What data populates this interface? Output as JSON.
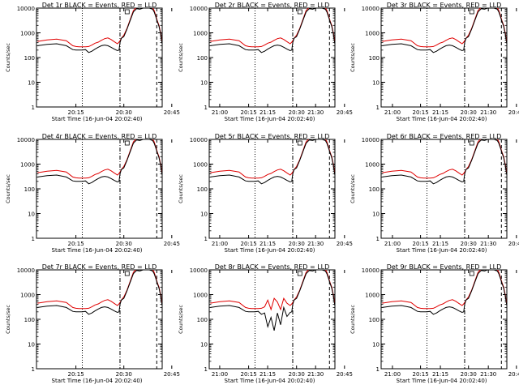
{
  "colors": {
    "events": "#000000",
    "lld": "#e00000",
    "axis": "#000000",
    "background": "#ffffff"
  },
  "chart_data": {
    "type": "line",
    "layout": "3x3",
    "title_suffix": "BLACK = Events, RED = LLD",
    "ylabel": "Counts/sec",
    "xlabel": "Start Time (16-Jun-04 20:02:40)",
    "yscale": "log",
    "ylim": [
      1,
      10000
    ],
    "y_tick_values": [
      1,
      10,
      100,
      1000,
      10000
    ],
    "y_tick_labels": [
      "1",
      "10",
      "100",
      "1000",
      "10000"
    ],
    "x_unit": "minutes since 20:00 (16-Jun-04)",
    "xlim": [
      2.67,
      42.0
    ],
    "x_tick_values": [
      15,
      30,
      45,
      60,
      75,
      90
    ],
    "x_tick_labels": [
      "20:15",
      "20:30",
      "20:45",
      "21:00",
      "21:15",
      "21:30"
    ],
    "markers": [
      {
        "type": "dotted",
        "x": 17.0
      },
      {
        "type": "dash-dot",
        "x": 28.8
      },
      {
        "type": "dashed",
        "x": 40.3
      }
    ],
    "x": [
      3,
      6,
      9,
      12,
      14,
      15,
      16,
      17,
      18,
      19,
      20,
      21,
      22,
      23,
      24,
      25,
      26,
      27,
      28,
      28.5,
      28.8,
      29.2,
      30,
      31,
      32,
      33,
      34,
      35,
      36,
      37,
      38,
      39,
      39.5,
      40,
      40.5,
      41,
      41.5,
      42
    ],
    "detectors": [
      {
        "name": "Det 1r",
        "lld": [
          450,
          520,
          560,
          480,
          300,
          280,
          270,
          270,
          270,
          280,
          320,
          380,
          420,
          500,
          580,
          620,
          540,
          440,
          360,
          420,
          480,
          600,
          800,
          1500,
          3500,
          8000,
          11000,
          10500,
          12000,
          13000,
          12000,
          10500,
          8000,
          5000,
          3000,
          2000,
          1000,
          400
        ],
        "events": [
          300,
          340,
          360,
          300,
          210,
          200,
          200,
          200,
          210,
          160,
          180,
          220,
          260,
          300,
          320,
          300,
          260,
          220,
          190,
          200,
          400,
          600,
          700,
          1400,
          3200,
          7000,
          9500,
          9000,
          10000,
          11000,
          10000,
          9000,
          7000,
          4500,
          2800,
          1800,
          900,
          350
        ]
      },
      {
        "name": "Det 2r",
        "lld": [
          450,
          520,
          560,
          480,
          300,
          280,
          270,
          270,
          270,
          280,
          320,
          380,
          420,
          500,
          580,
          620,
          540,
          440,
          360,
          420,
          480,
          600,
          800,
          1500,
          3500,
          8000,
          11000,
          10500,
          12000,
          13000,
          12000,
          10500,
          8000,
          5000,
          3000,
          2000,
          1000,
          400
        ],
        "events": [
          300,
          340,
          360,
          300,
          210,
          200,
          200,
          200,
          210,
          160,
          180,
          220,
          260,
          300,
          320,
          300,
          260,
          220,
          190,
          200,
          400,
          600,
          700,
          1400,
          3200,
          7000,
          9500,
          9000,
          10000,
          11000,
          10000,
          9000,
          7000,
          4500,
          2800,
          1800,
          900,
          350
        ]
      },
      {
        "name": "Det 3r",
        "lld": [
          450,
          520,
          560,
          480,
          300,
          280,
          270,
          270,
          270,
          280,
          320,
          380,
          420,
          500,
          580,
          620,
          540,
          440,
          360,
          420,
          480,
          600,
          800,
          1500,
          3500,
          8000,
          11000,
          10500,
          12000,
          13000,
          12000,
          10500,
          8000,
          5000,
          3000,
          2000,
          1000,
          400
        ],
        "events": [
          300,
          340,
          360,
          300,
          210,
          200,
          200,
          200,
          210,
          160,
          180,
          220,
          260,
          300,
          320,
          300,
          260,
          220,
          190,
          200,
          400,
          600,
          700,
          1400,
          3200,
          7000,
          9500,
          9000,
          10000,
          11000,
          10000,
          9000,
          7000,
          4500,
          2800,
          1800,
          900,
          350
        ]
      },
      {
        "name": "Det 4r",
        "lld": [
          450,
          520,
          560,
          480,
          300,
          280,
          270,
          270,
          270,
          280,
          320,
          380,
          420,
          500,
          580,
          620,
          540,
          440,
          360,
          420,
          480,
          600,
          800,
          1500,
          3500,
          8000,
          11000,
          10500,
          12000,
          13000,
          12000,
          10500,
          8000,
          5000,
          3000,
          2000,
          1000,
          400
        ],
        "events": [
          300,
          340,
          360,
          300,
          210,
          200,
          200,
          200,
          210,
          160,
          180,
          220,
          260,
          300,
          320,
          300,
          260,
          220,
          190,
          200,
          400,
          600,
          700,
          1400,
          3200,
          7000,
          9500,
          9000,
          10000,
          11000,
          10000,
          9000,
          7000,
          4500,
          2800,
          1800,
          900,
          350
        ]
      },
      {
        "name": "Det 5r",
        "lld": [
          450,
          520,
          560,
          480,
          300,
          280,
          270,
          270,
          270,
          280,
          320,
          380,
          420,
          500,
          580,
          620,
          540,
          440,
          360,
          420,
          480,
          600,
          800,
          1500,
          3500,
          8000,
          11000,
          10500,
          12000,
          13000,
          12000,
          10500,
          8000,
          5000,
          3000,
          2000,
          1000,
          400
        ],
        "events": [
          300,
          340,
          360,
          300,
          210,
          200,
          200,
          200,
          210,
          160,
          180,
          220,
          260,
          300,
          320,
          300,
          260,
          220,
          190,
          200,
          400,
          600,
          700,
          1400,
          3200,
          7000,
          9500,
          9000,
          10000,
          11000,
          10000,
          9000,
          7000,
          4500,
          2800,
          1800,
          900,
          350
        ]
      },
      {
        "name": "Det 6r",
        "lld": [
          450,
          520,
          560,
          480,
          300,
          280,
          270,
          270,
          270,
          280,
          320,
          380,
          420,
          500,
          580,
          620,
          540,
          440,
          360,
          420,
          480,
          600,
          800,
          1500,
          3500,
          8000,
          11000,
          10500,
          12000,
          13000,
          12000,
          10500,
          8000,
          5000,
          3000,
          2000,
          1000,
          400
        ],
        "events": [
          300,
          340,
          360,
          300,
          210,
          200,
          200,
          200,
          210,
          160,
          180,
          220,
          260,
          300,
          320,
          300,
          260,
          220,
          190,
          200,
          400,
          600,
          700,
          1400,
          3200,
          7000,
          9500,
          9000,
          10000,
          11000,
          10000,
          9000,
          7000,
          4500,
          2800,
          1800,
          900,
          350
        ]
      },
      {
        "name": "Det 7r",
        "lld": [
          450,
          520,
          560,
          480,
          300,
          280,
          270,
          270,
          270,
          280,
          320,
          380,
          420,
          500,
          580,
          620,
          540,
          440,
          360,
          420,
          480,
          600,
          800,
          1500,
          3500,
          8000,
          11000,
          10500,
          12000,
          13000,
          12000,
          10500,
          8000,
          5000,
          3000,
          2000,
          1000,
          400
        ],
        "events": [
          300,
          340,
          360,
          300,
          210,
          200,
          200,
          200,
          210,
          160,
          180,
          220,
          260,
          300,
          320,
          300,
          260,
          220,
          190,
          200,
          400,
          600,
          700,
          1400,
          3200,
          7000,
          9500,
          9000,
          10000,
          11000,
          10000,
          9000,
          7000,
          4500,
          2800,
          1800,
          900,
          350
        ]
      },
      {
        "name": "Det 8r",
        "lld": [
          450,
          520,
          560,
          480,
          300,
          280,
          270,
          270,
          270,
          280,
          320,
          600,
          250,
          700,
          500,
          250,
          700,
          450,
          360,
          420,
          480,
          600,
          800,
          1500,
          3500,
          8000,
          11000,
          10500,
          12000,
          13000,
          12000,
          10500,
          8000,
          5000,
          3000,
          2000,
          1000,
          400
        ],
        "events": [
          300,
          340,
          360,
          300,
          210,
          200,
          200,
          200,
          210,
          160,
          180,
          50,
          120,
          35,
          180,
          60,
          300,
          130,
          190,
          200,
          400,
          600,
          700,
          1400,
          3200,
          7000,
          9500,
          9000,
          10000,
          11000,
          10000,
          9000,
          7000,
          4500,
          2800,
          1800,
          900,
          350
        ]
      },
      {
        "name": "Det 9r",
        "lld": [
          450,
          520,
          560,
          480,
          300,
          280,
          270,
          270,
          270,
          280,
          320,
          380,
          420,
          500,
          580,
          620,
          540,
          440,
          360,
          420,
          480,
          600,
          800,
          1500,
          3500,
          8000,
          11000,
          10500,
          12000,
          13000,
          12000,
          10500,
          8000,
          5000,
          3000,
          2000,
          1000,
          400
        ],
        "events": [
          300,
          340,
          360,
          300,
          210,
          200,
          200,
          200,
          210,
          160,
          180,
          220,
          260,
          300,
          320,
          300,
          260,
          220,
          190,
          200,
          400,
          600,
          700,
          1400,
          3200,
          7000,
          9500,
          9000,
          10000,
          11000,
          10000,
          9000,
          7000,
          4500,
          2800,
          1800,
          900,
          350
        ]
      }
    ]
  }
}
